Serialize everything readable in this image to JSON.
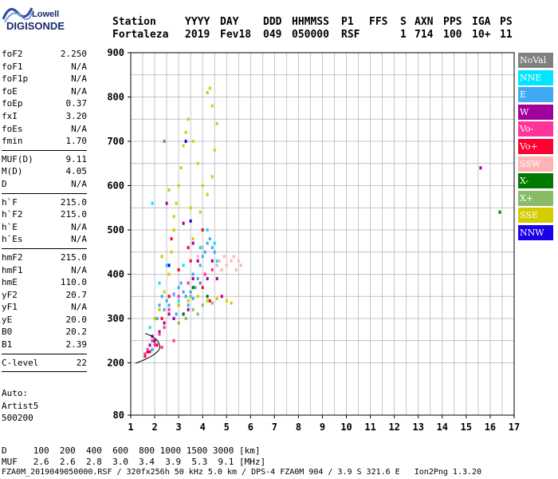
{
  "logo": {
    "top": "Lowell",
    "bottom": "DIGISONDE"
  },
  "header": {
    "row1": [
      "Station",
      "YYYY",
      "DAY",
      "DDD",
      "HHMMSS",
      "P1",
      "FFS",
      "S",
      "AXN",
      "PPS",
      "IGA",
      "PS"
    ],
    "row2": [
      "Fortaleza",
      "2019",
      "Fev18",
      "049",
      "050000",
      "RSF",
      "1",
      "714",
      "100",
      "10+",
      "11"
    ]
  },
  "params": {
    "group1": [
      {
        "label": "foF2",
        "value": "2.250"
      },
      {
        "label": "foF1",
        "value": "N/A"
      },
      {
        "label": "foF1p",
        "value": "N/A"
      },
      {
        "label": "foE",
        "value": "N/A"
      },
      {
        "label": "foEp",
        "value": "0.37"
      },
      {
        "label": "fxI",
        "value": "3.20"
      },
      {
        "label": "foEs",
        "value": "N/A"
      },
      {
        "label": "fmin",
        "value": "1.70"
      }
    ],
    "group2": [
      {
        "label": "MUF(D)",
        "value": "9.11"
      },
      {
        "label": "M(D)",
        "value": "4.05"
      },
      {
        "label": "D",
        "value": "N/A"
      }
    ],
    "group3": [
      {
        "label": "h`F",
        "value": "215.0"
      },
      {
        "label": "h`F2",
        "value": "215.0"
      },
      {
        "label": "h`E",
        "value": "N/A"
      },
      {
        "label": "h`Es",
        "value": "N/A"
      }
    ],
    "group4": [
      {
        "label": "hmF2",
        "value": "215.0"
      },
      {
        "label": "hmF1",
        "value": "N/A"
      },
      {
        "label": "hmE",
        "value": "110.0"
      },
      {
        "label": "yF2",
        "value": "20.7"
      },
      {
        "label": "yF1",
        "value": "N/A"
      },
      {
        "label": "yE",
        "value": "20.0"
      },
      {
        "label": "B0",
        "value": "20.2"
      },
      {
        "label": "B1",
        "value": "2.39"
      }
    ],
    "group5": [
      {
        "label": "C-level",
        "value": "22"
      }
    ]
  },
  "auto": {
    "lines": [
      "Auto:",
      "Artist5",
      "500200"
    ]
  },
  "legend": [
    {
      "label": "NoVal",
      "color": "#808080"
    },
    {
      "label": "NNE",
      "color": "#00e5ff"
    },
    {
      "label": "E",
      "color": "#3fa9f5"
    },
    {
      "label": "W",
      "color": "#a0009c"
    },
    {
      "label": "Vo-",
      "color": "#ff3399"
    },
    {
      "label": "Vo+",
      "color": "#ff0033"
    },
    {
      "label": "SSW",
      "color": "#ffb3b3"
    },
    {
      "label": "X-",
      "color": "#007a00"
    },
    {
      "label": "X+",
      "color": "#88bb66"
    },
    {
      "label": "SSE",
      "color": "#d4cc00"
    },
    {
      "label": "NNW",
      "color": "#1a00e6"
    }
  ],
  "bottom": {
    "line1": "D     100  200  400  600  800 1000 1500 3000 [km]",
    "line2": "MUF   2.6  2.6  2.8  3.0  3.4  3.9  5.3  9.1 [MHz]",
    "line3": "FZA0M_2019049050000.RSF / 320fx256h 50 kHz 5.0 km / DPS-4 FZA0M 904 / 3.9 S 321.6 E   Ion2Png 1.3.20"
  },
  "chart_data": {
    "type": "scatter",
    "xlim": [
      1,
      17
    ],
    "ylim": [
      80,
      900
    ],
    "x_ticks": [
      1,
      2,
      3,
      4,
      5,
      6,
      7,
      8,
      9,
      10,
      11,
      12,
      13,
      14,
      15,
      16,
      17
    ],
    "y_ticks": [
      80,
      200,
      300,
      400,
      500,
      600,
      700,
      800,
      900
    ],
    "grid": true,
    "legend_placement": "right",
    "series": [
      {
        "name": "E",
        "color": "#3fa9f5",
        "points": [
          [
            1.9,
            230
          ],
          [
            2.0,
            245
          ],
          [
            2.1,
            300
          ],
          [
            2.2,
            330
          ],
          [
            2.3,
            350
          ],
          [
            2.5,
            340
          ],
          [
            2.6,
            330
          ],
          [
            2.8,
            355
          ],
          [
            3.0,
            370
          ],
          [
            3.1,
            380
          ],
          [
            3.2,
            360
          ],
          [
            3.3,
            350
          ],
          [
            3.5,
            360
          ],
          [
            3.6,
            345
          ],
          [
            3.7,
            370
          ],
          [
            3.8,
            390
          ],
          [
            3.9,
            420
          ],
          [
            4.0,
            440
          ],
          [
            4.1,
            450
          ],
          [
            4.2,
            470
          ],
          [
            4.3,
            480
          ],
          [
            4.4,
            460
          ],
          [
            4.5,
            450
          ],
          [
            4.6,
            420
          ],
          [
            3.4,
            330
          ],
          [
            2.9,
            310
          ],
          [
            2.4,
            320
          ],
          [
            3.6,
            400
          ]
        ]
      },
      {
        "name": "NNE",
        "color": "#00e5ff",
        "points": [
          [
            1.8,
            280
          ],
          [
            1.9,
            560
          ],
          [
            2.2,
            380
          ],
          [
            2.5,
            420
          ],
          [
            3.0,
            340
          ],
          [
            3.2,
            420
          ],
          [
            3.9,
            460
          ],
          [
            4.2,
            500
          ],
          [
            4.5,
            470
          ],
          [
            4.6,
            430
          ]
        ]
      },
      {
        "name": "W",
        "color": "#a0009c",
        "points": [
          [
            1.7,
            225
          ],
          [
            1.8,
            240
          ],
          [
            1.9,
            260
          ],
          [
            2.0,
            250
          ],
          [
            2.2,
            270
          ],
          [
            2.4,
            290
          ],
          [
            2.6,
            310
          ],
          [
            2.8,
            300
          ],
          [
            3.0,
            330
          ],
          [
            3.2,
            310
          ],
          [
            3.4,
            320
          ],
          [
            3.6,
            390
          ],
          [
            3.8,
            430
          ],
          [
            4.0,
            460
          ],
          [
            4.2,
            390
          ],
          [
            4.4,
            430
          ],
          [
            4.6,
            390
          ],
          [
            2.5,
            560
          ],
          [
            3.2,
            515
          ],
          [
            3.6,
            470
          ],
          [
            4.8,
            350
          ],
          [
            15.6,
            640
          ]
        ]
      },
      {
        "name": "Vo-",
        "color": "#ff3399",
        "points": [
          [
            1.6,
            220
          ],
          [
            1.7,
            230
          ],
          [
            1.9,
            250
          ],
          [
            2.0,
            240
          ],
          [
            2.2,
            265
          ],
          [
            2.4,
            280
          ],
          [
            2.6,
            320
          ],
          [
            3.0,
            350
          ],
          [
            3.4,
            380
          ],
          [
            4.1,
            400
          ],
          [
            4.4,
            410
          ],
          [
            2.3,
            235
          ],
          [
            2.8,
            250
          ]
        ]
      },
      {
        "name": "Vo+",
        "color": "#ff0033",
        "points": [
          [
            1.6,
            215
          ],
          [
            1.8,
            225
          ],
          [
            2.1,
            240
          ],
          [
            2.3,
            300
          ],
          [
            2.6,
            350
          ],
          [
            3.0,
            410
          ],
          [
            3.5,
            430
          ],
          [
            4.0,
            370
          ],
          [
            4.3,
            340
          ],
          [
            2.7,
            480
          ],
          [
            3.4,
            460
          ],
          [
            4.0,
            500
          ]
        ]
      },
      {
        "name": "SSW",
        "color": "#ffb3b3",
        "points": [
          [
            4.6,
            420
          ],
          [
            4.7,
            430
          ],
          [
            4.8,
            410
          ],
          [
            4.9,
            440
          ],
          [
            5.0,
            420
          ],
          [
            5.2,
            430
          ],
          [
            5.4,
            410
          ],
          [
            5.5,
            430
          ],
          [
            5.6,
            420
          ],
          [
            5.3,
            440
          ],
          [
            3.8,
            440
          ],
          [
            4.0,
            460
          ]
        ]
      },
      {
        "name": "X-",
        "color": "#007a00",
        "points": [
          [
            3.2,
            310
          ],
          [
            3.6,
            370
          ],
          [
            4.2,
            350
          ],
          [
            16.4,
            540
          ]
        ]
      },
      {
        "name": "X+",
        "color": "#88bb66",
        "points": [
          [
            3.0,
            290
          ],
          [
            3.3,
            300
          ],
          [
            3.6,
            320
          ],
          [
            3.8,
            310
          ],
          [
            4.0,
            330
          ],
          [
            4.2,
            340
          ],
          [
            4.4,
            335
          ],
          [
            3.5,
            350
          ]
        ]
      },
      {
        "name": "SSE",
        "color": "#d4cc00",
        "points": [
          [
            2.0,
            300
          ],
          [
            2.2,
            320
          ],
          [
            2.4,
            360
          ],
          [
            2.6,
            400
          ],
          [
            2.7,
            450
          ],
          [
            2.8,
            500
          ],
          [
            2.9,
            560
          ],
          [
            3.0,
            600
          ],
          [
            3.1,
            640
          ],
          [
            3.2,
            690
          ],
          [
            3.3,
            720
          ],
          [
            3.4,
            750
          ],
          [
            3.6,
            700
          ],
          [
            3.8,
            650
          ],
          [
            4.0,
            600
          ],
          [
            4.2,
            580
          ],
          [
            4.4,
            620
          ],
          [
            4.5,
            680
          ],
          [
            4.6,
            740
          ],
          [
            4.4,
            780
          ],
          [
            4.2,
            810
          ],
          [
            4.3,
            820
          ],
          [
            3.0,
            330
          ],
          [
            3.4,
            340
          ],
          [
            3.8,
            350
          ],
          [
            4.2,
            340
          ],
          [
            4.6,
            345
          ],
          [
            5.0,
            340
          ],
          [
            5.2,
            335
          ],
          [
            2.8,
            530
          ],
          [
            3.5,
            550
          ],
          [
            3.9,
            540
          ],
          [
            3.6,
            480
          ],
          [
            2.3,
            440
          ],
          [
            2.6,
            590
          ]
        ]
      },
      {
        "name": "NNW",
        "color": "#1a00e6",
        "points": [
          [
            2.6,
            420
          ],
          [
            3.3,
            700
          ],
          [
            3.5,
            520
          ]
        ]
      },
      {
        "name": "NoVal",
        "color": "#808080",
        "points": [
          [
            2.4,
            700
          ],
          [
            3.9,
            380
          ]
        ]
      }
    ]
  }
}
